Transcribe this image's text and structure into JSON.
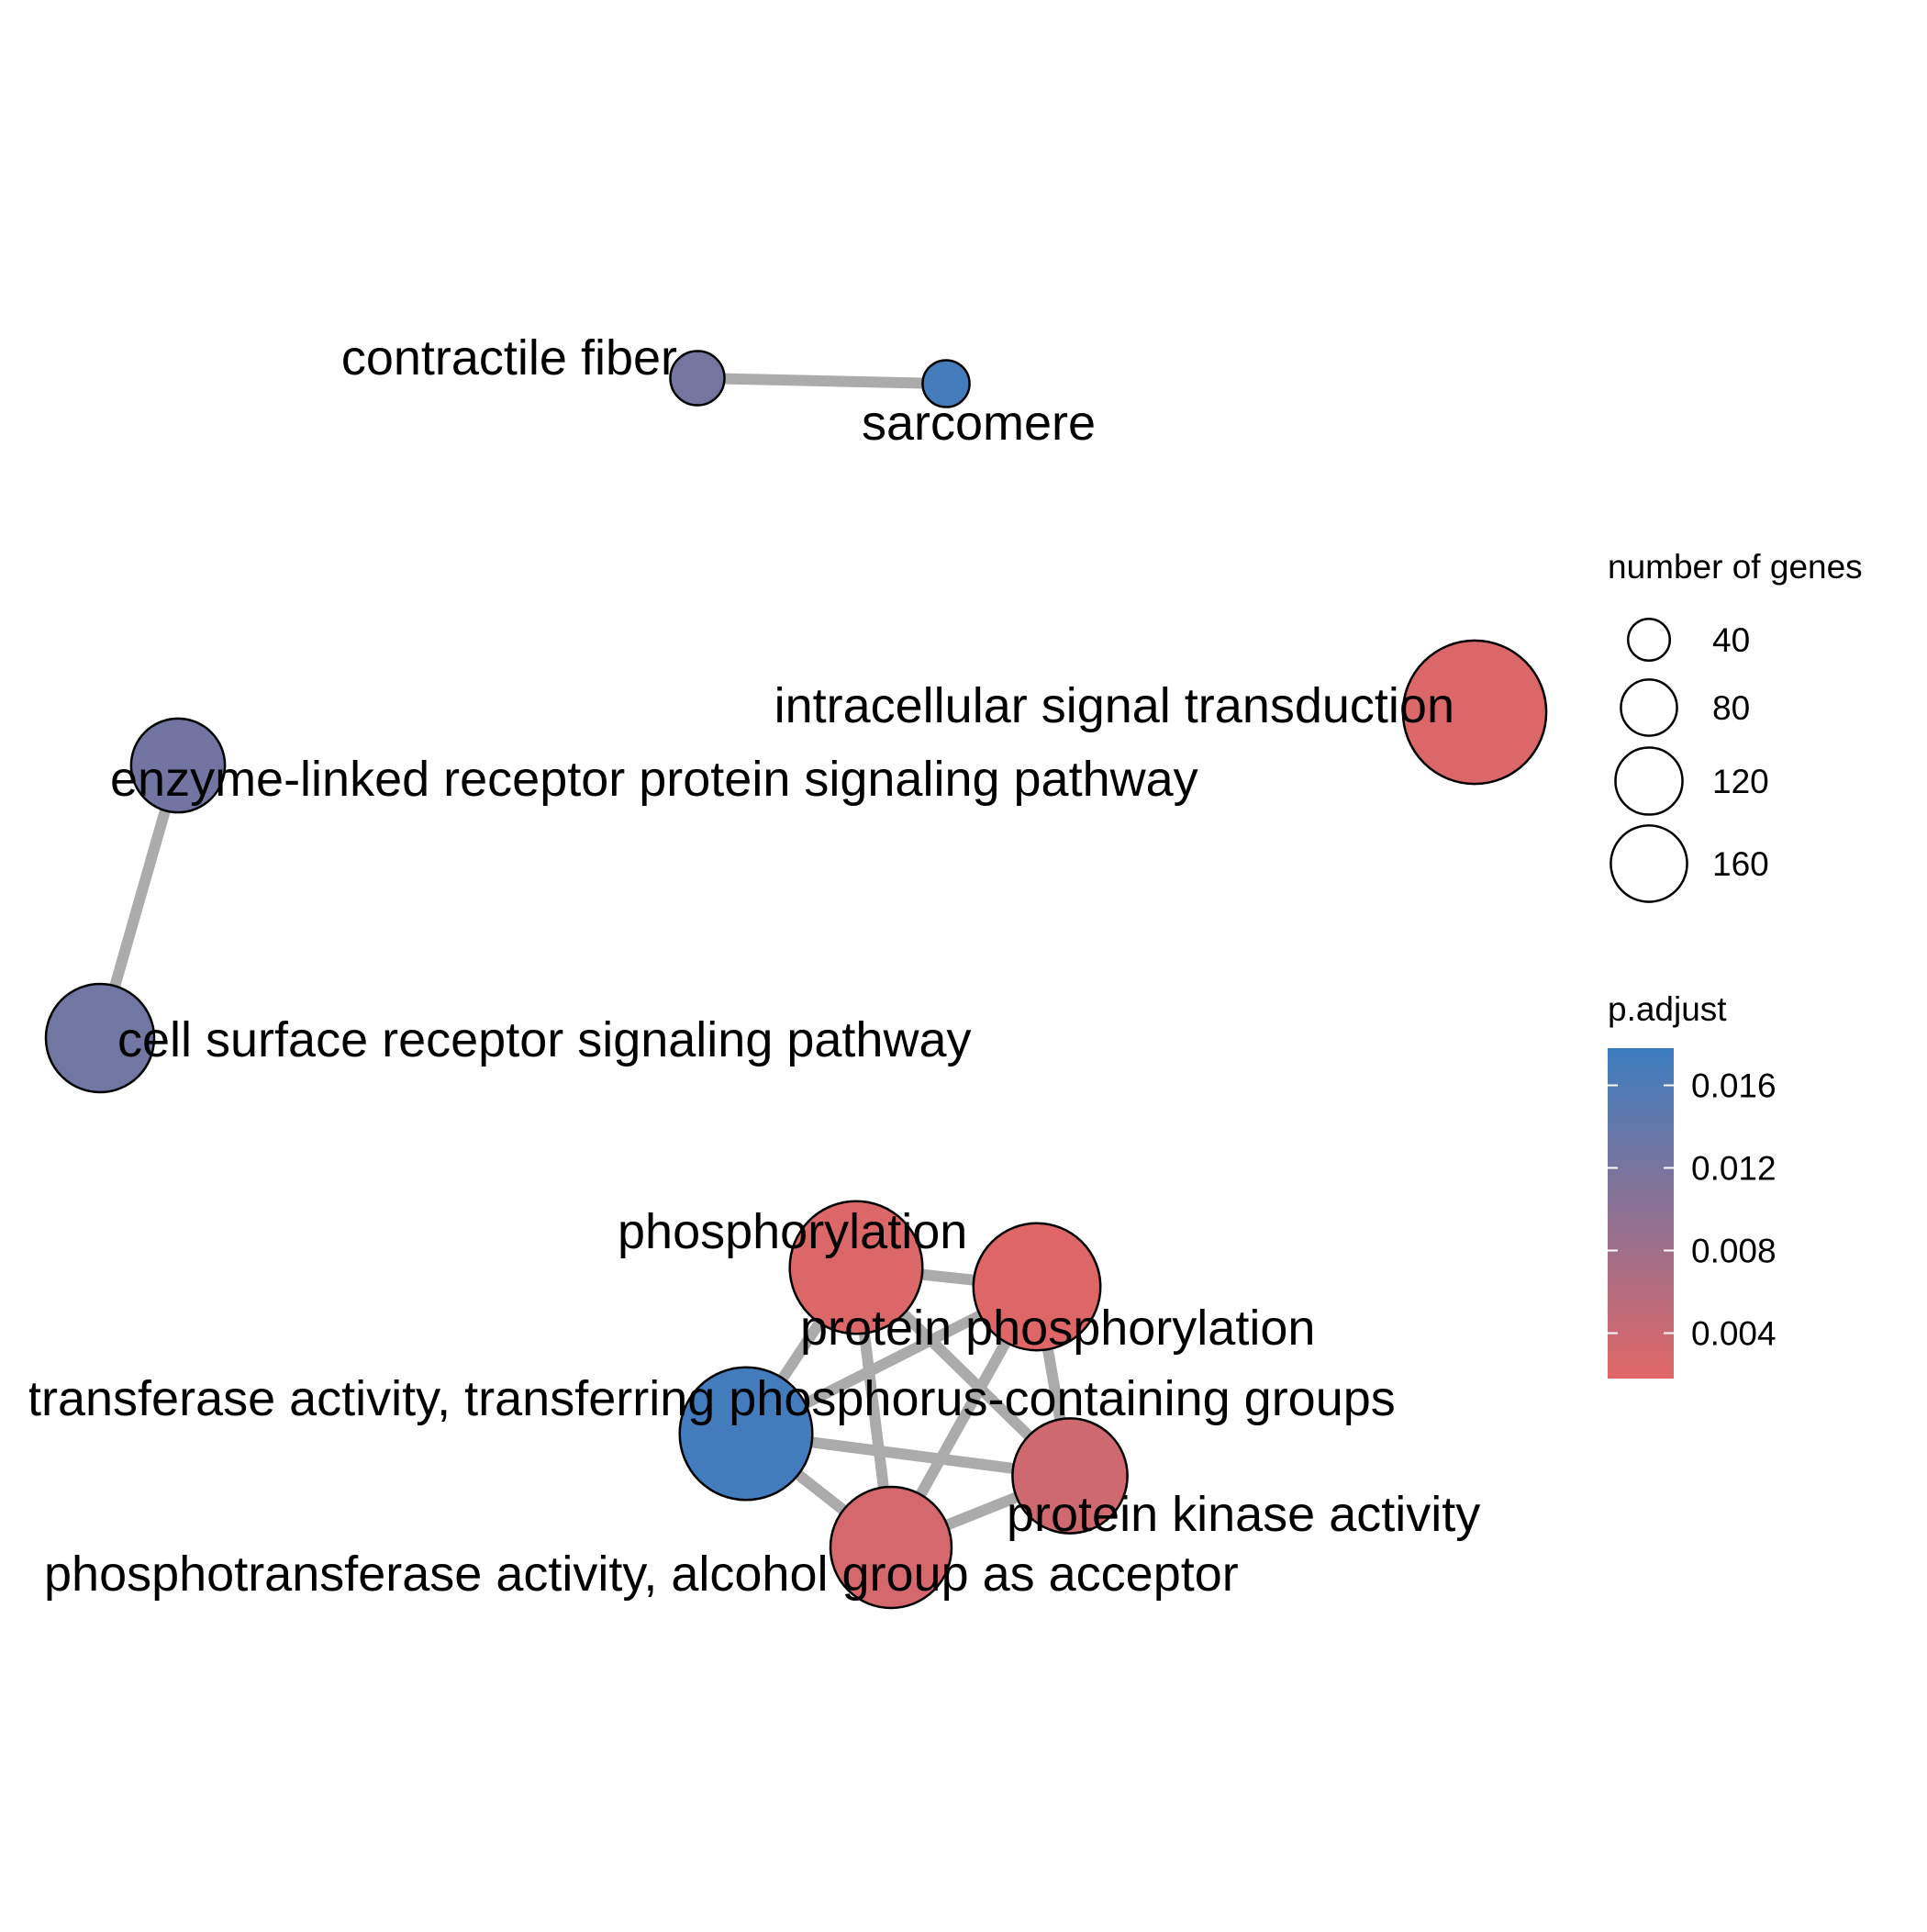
{
  "nodes": [
    {
      "id": "contractile_fiber",
      "label": "contractile fiber",
      "size": 20,
      "p_adjust": 0.0122
    },
    {
      "id": "sarcomere",
      "label": "sarcomere",
      "size": 15,
      "p_adjust": 0.017
    },
    {
      "id": "intracellular_signal_transduction",
      "label": "intracellular signal transduction",
      "size": 140,
      "p_adjust": 0.0022
    },
    {
      "id": "enzyme_linked",
      "label": "enzyme-linked receptor protein signaling pathway",
      "size": 60,
      "p_adjust": 0.0125
    },
    {
      "id": "cell_surface",
      "label": "cell surface receptor signaling pathway",
      "size": 80,
      "p_adjust": 0.0126
    },
    {
      "id": "phosphorylation",
      "label": "phosphorylation",
      "size": 120,
      "p_adjust": 0.0022
    },
    {
      "id": "protein_phosphorylation",
      "label": "protein phosphorylation",
      "size": 110,
      "p_adjust": 0.002
    },
    {
      "id": "phosphorus_groups",
      "label": "transferase activity, transferring phosphorus-containing groups",
      "size": 120,
      "p_adjust": 0.0172
    },
    {
      "id": "protein_kinase",
      "label": "protein kinase activity",
      "size": 90,
      "p_adjust": 0.0036
    },
    {
      "id": "alcohol_acceptor",
      "label": "phosphotransferase activity, alcohol group as acceptor",
      "size": 100,
      "p_adjust": 0.003
    }
  ],
  "edges": [
    [
      "contractile_fiber",
      "sarcomere"
    ],
    [
      "enzyme_linked",
      "cell_surface"
    ],
    [
      "phosphorylation",
      "protein_phosphorylation"
    ],
    [
      "phosphorylation",
      "phosphorus_groups"
    ],
    [
      "phosphorylation",
      "protein_kinase"
    ],
    [
      "phosphorylation",
      "alcohol_acceptor"
    ],
    [
      "protein_phosphorylation",
      "phosphorus_groups"
    ],
    [
      "protein_phosphorylation",
      "protein_kinase"
    ],
    [
      "protein_phosphorylation",
      "alcohol_acceptor"
    ],
    [
      "phosphorus_groups",
      "protein_kinase"
    ],
    [
      "phosphorus_groups",
      "alcohol_acceptor"
    ],
    [
      "protein_kinase",
      "alcohol_acceptor"
    ]
  ],
  "legend": {
    "size_title": "number of genes",
    "size_entries": [
      {
        "value": 40,
        "label": "40"
      },
      {
        "value": 80,
        "label": "80"
      },
      {
        "value": 120,
        "label": "120"
      },
      {
        "value": 160,
        "label": "160"
      }
    ],
    "color_title": "p.adjust",
    "color_ticks": [
      {
        "value": 0.016,
        "label": "0.016"
      },
      {
        "value": 0.012,
        "label": "0.012"
      },
      {
        "value": 0.008,
        "label": "0.008"
      },
      {
        "value": 0.004,
        "label": "0.004"
      }
    ],
    "color_low": "#E06666",
    "color_high": "#3C7DBF",
    "color_range": [
      0.0018,
      0.0178
    ]
  },
  "colors": {
    "edge": "#ABABAB",
    "node_outline": "#000000"
  }
}
